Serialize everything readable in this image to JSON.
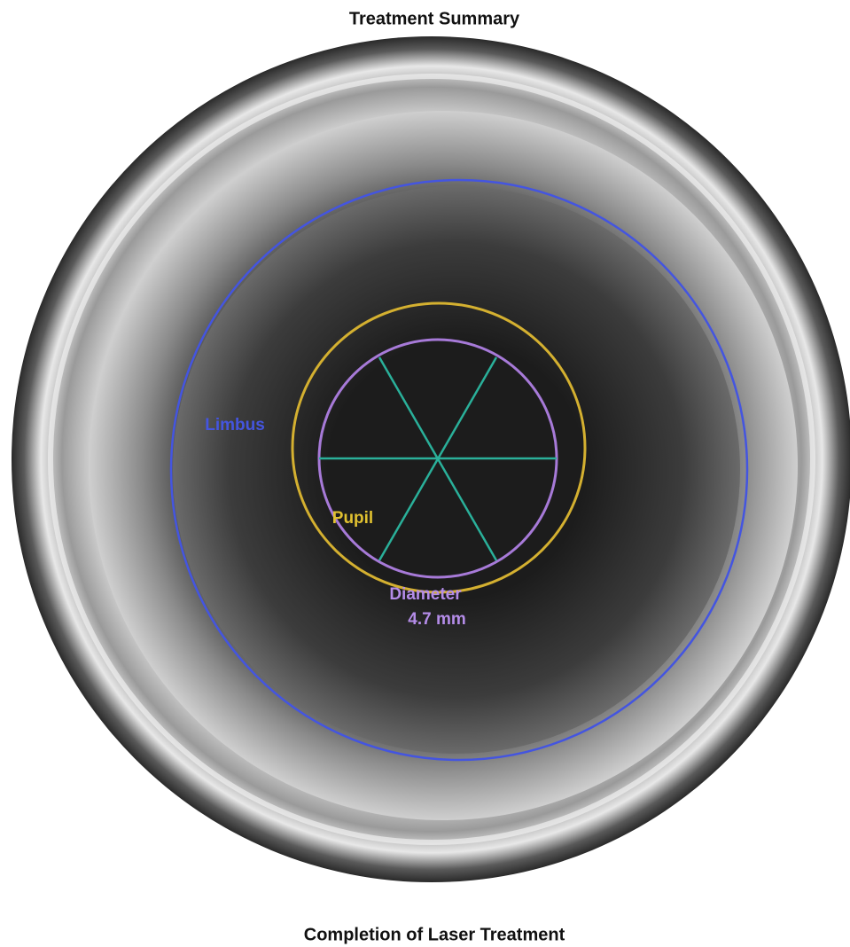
{
  "header": {
    "title": "Treatment Summary"
  },
  "overlay": {
    "limbus_label": "Limbus",
    "pupil_label": "Pupil",
    "diameter_label": "Diameter",
    "diameter_value": "4.7 mm"
  },
  "footer": {
    "caption": "Completion of Laser Treatment"
  }
}
